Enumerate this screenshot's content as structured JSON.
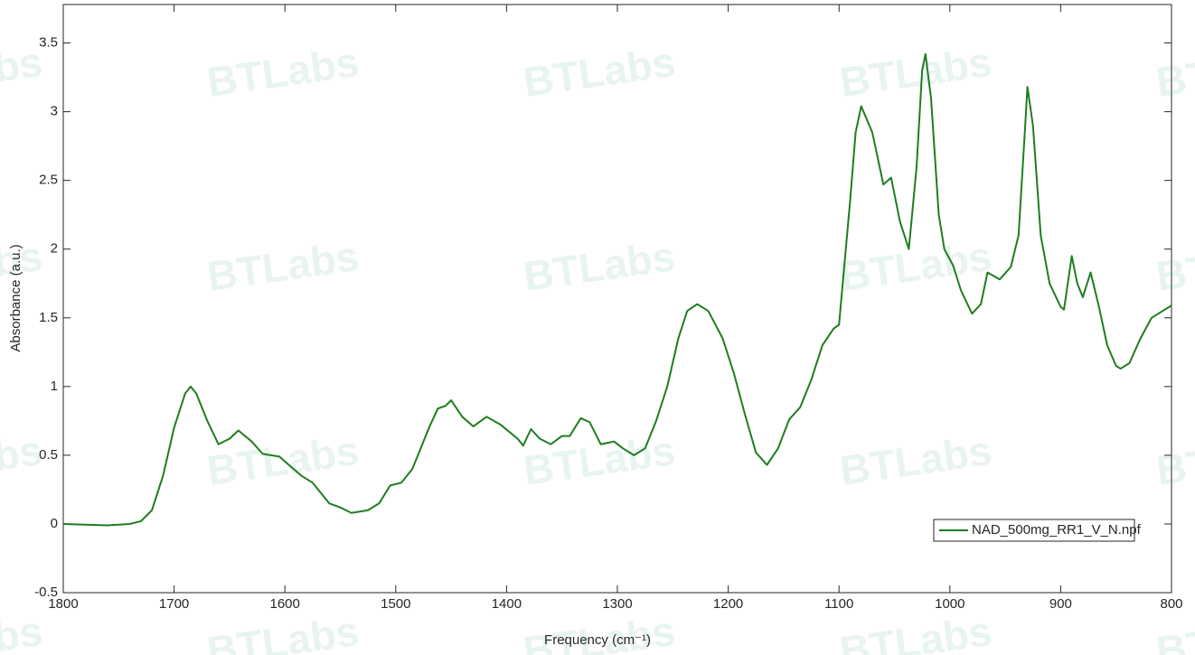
{
  "chart_data": {
    "type": "line",
    "xlabel": "Frequency (cm⁻¹)",
    "ylabel": "Absorbance (a.u.)",
    "watermark": "BTLabs",
    "x": [
      1800,
      1760,
      1740,
      1730,
      1720,
      1710,
      1700,
      1690,
      1685,
      1680,
      1670,
      1660,
      1650,
      1642,
      1630,
      1620,
      1605,
      1595,
      1585,
      1575,
      1560,
      1550,
      1540,
      1525,
      1515,
      1505,
      1495,
      1485,
      1470,
      1462,
      1455,
      1450,
      1440,
      1430,
      1418,
      1405,
      1390,
      1385,
      1378,
      1370,
      1360,
      1350,
      1343,
      1333,
      1325,
      1315,
      1303,
      1295,
      1285,
      1275,
      1265,
      1255,
      1245,
      1237,
      1228,
      1218,
      1205,
      1195,
      1185,
      1175,
      1165,
      1155,
      1145,
      1135,
      1125,
      1115,
      1105,
      1100,
      1095,
      1090,
      1085,
      1080,
      1070,
      1060,
      1053,
      1045,
      1037,
      1030,
      1025,
      1022,
      1017,
      1010,
      1005,
      997,
      990,
      980,
      972,
      966,
      955,
      945,
      938,
      932,
      930,
      925,
      918,
      910,
      900,
      897,
      890,
      885,
      880,
      873,
      866,
      858,
      850,
      846,
      838,
      828,
      818,
      808,
      800
    ],
    "series": [
      {
        "name": "NAD_500mg_RR1_V_N.npf",
        "color": "#1f7d1f",
        "values": [
          0,
          -0.01,
          0,
          0.02,
          0.1,
          0.35,
          0.7,
          0.95,
          1.0,
          0.95,
          0.75,
          0.58,
          0.62,
          0.68,
          0.6,
          0.51,
          0.49,
          0.42,
          0.35,
          0.3,
          0.15,
          0.12,
          0.08,
          0.1,
          0.15,
          0.28,
          0.3,
          0.4,
          0.7,
          0.84,
          0.86,
          0.9,
          0.78,
          0.71,
          0.78,
          0.72,
          0.62,
          0.57,
          0.69,
          0.62,
          0.58,
          0.64,
          0.64,
          0.77,
          0.74,
          0.58,
          0.6,
          0.55,
          0.5,
          0.55,
          0.75,
          1.0,
          1.35,
          1.55,
          1.6,
          1.55,
          1.35,
          1.1,
          0.8,
          0.52,
          0.43,
          0.55,
          0.76,
          0.85,
          1.05,
          1.3,
          1.42,
          1.45,
          1.9,
          2.35,
          2.85,
          3.04,
          2.85,
          2.47,
          2.52,
          2.2,
          2.0,
          2.6,
          3.3,
          3.42,
          3.1,
          2.25,
          2.0,
          1.88,
          1.7,
          1.53,
          1.6,
          1.83,
          1.78,
          1.87,
          2.1,
          2.9,
          3.18,
          2.9,
          2.1,
          1.75,
          1.58,
          1.56,
          1.95,
          1.75,
          1.65,
          1.83,
          1.6,
          1.3,
          1.15,
          1.13,
          1.17,
          1.35,
          1.5,
          1.55,
          1.59
        ]
      }
    ],
    "xlim": [
      1800,
      800
    ],
    "xticks": [
      1800,
      1700,
      1600,
      1500,
      1400,
      1300,
      1200,
      1100,
      1000,
      900,
      800
    ],
    "ylim": [
      -0.5,
      3.78
    ],
    "yticks": [
      -0.5,
      0,
      0.5,
      1,
      1.5,
      2,
      2.5,
      3,
      3.5
    ],
    "grid": false,
    "legend": "lower right"
  }
}
